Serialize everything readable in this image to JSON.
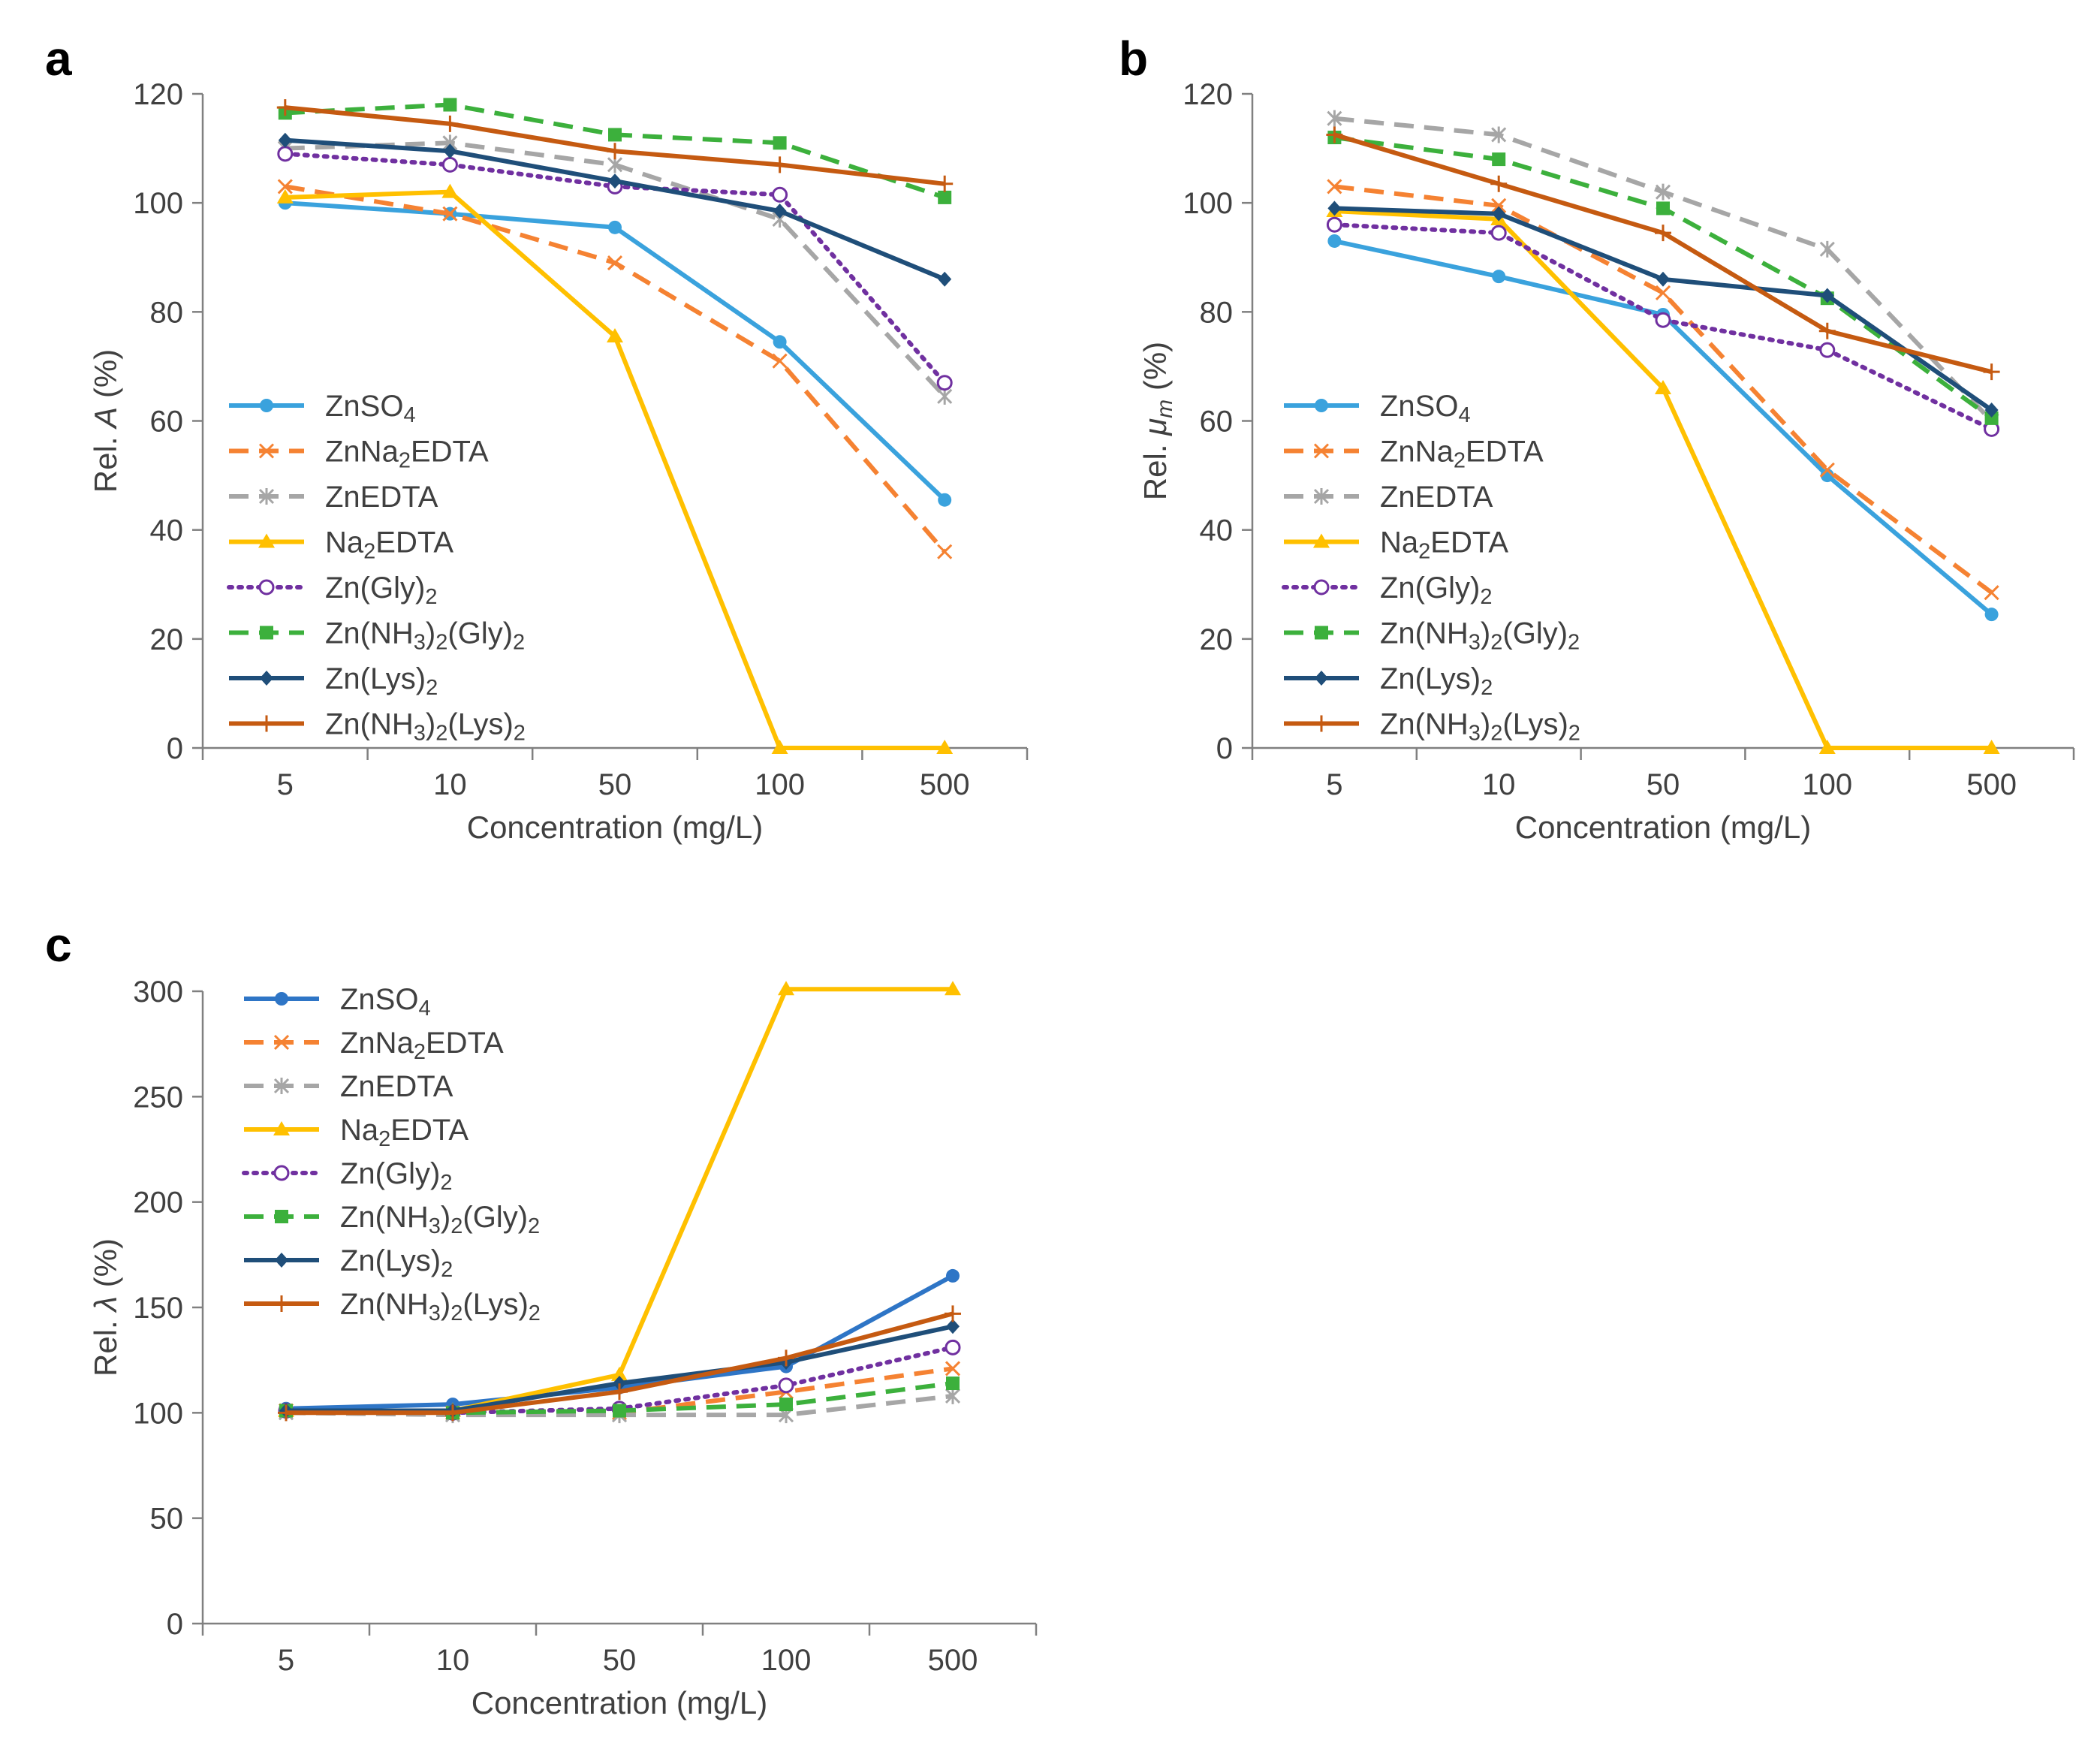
{
  "colors": {
    "ZnSO4_a": "#3AA2DD",
    "ZnSO4_c": "#2E75C6",
    "ZnNa2EDTA": "#F58232",
    "ZnEDTA": "#A6A6A6",
    "Na2EDTA": "#FFC000",
    "ZnGly2": "#7030A0",
    "ZnNH3Gly": "#3CB03C",
    "ZnLys2": "#1F4E79",
    "ZnNH3Lys": "#C55A11"
  },
  "chart_data": [
    {
      "id": "a",
      "panel_label": "a",
      "type": "line",
      "title": "",
      "xlabel": "Concentration (mg/L)",
      "ylabel_prefix": "Rel. ",
      "ylabel_symbol": "A",
      "ylabel_suffix": " (%)",
      "categories": [
        "5",
        "10",
        "50",
        "100",
        "500"
      ],
      "ylim": [
        0,
        120
      ],
      "yticks": [
        0,
        20,
        40,
        60,
        80,
        100,
        120
      ],
      "grid": false,
      "legend_position": "lower-left",
      "series": [
        {
          "key": "ZnSO4",
          "name": "ZnSO4",
          "label": [
            "ZnSO",
            "4",
            ""
          ],
          "color": "ZnSO4_a",
          "dash": "solid",
          "marker": "circle",
          "values": [
            100,
            98,
            95.5,
            74.5,
            45.5
          ]
        },
        {
          "key": "ZnNa2EDTA",
          "name": "ZnNa2EDTA",
          "label": [
            "ZnNa",
            "2",
            "EDTA"
          ],
          "color": "ZnNa2EDTA",
          "dash": "dash",
          "marker": "x",
          "values": [
            103,
            98,
            89,
            71,
            36
          ]
        },
        {
          "key": "ZnEDTA",
          "name": "ZnEDTA",
          "label": [
            "ZnEDTA"
          ],
          "color": "ZnEDTA",
          "dash": "dash",
          "marker": "star",
          "values": [
            110,
            111,
            107,
            97,
            64.5
          ]
        },
        {
          "key": "Na2EDTA",
          "name": "Na2EDTA",
          "label": [
            "Na",
            "2",
            "EDTA"
          ],
          "color": "Na2EDTA",
          "dash": "solid",
          "marker": "triangle",
          "values": [
            101,
            102,
            75.5,
            0,
            0
          ]
        },
        {
          "key": "ZnGly2",
          "name": "Zn(Gly)2",
          "label": [
            "Zn(Gly)",
            "2",
            ""
          ],
          "color": "ZnGly2",
          "dash": "dot",
          "marker": "ocircle",
          "values": [
            109,
            107,
            103,
            101.5,
            67
          ]
        },
        {
          "key": "ZnNH3Gly",
          "name": "Zn(NH3)2(Gly)2",
          "label": [
            "Zn(NH",
            "3",
            ")",
            "2",
            "(Gly)",
            "2",
            ""
          ],
          "color": "ZnNH3Gly",
          "dash": "dash",
          "marker": "square",
          "values": [
            116.5,
            118,
            112.5,
            111,
            101
          ]
        },
        {
          "key": "ZnLys2",
          "name": "Zn(Lys)2",
          "label": [
            "Zn(Lys)",
            "2",
            ""
          ],
          "color": "ZnLys2",
          "dash": "solid",
          "marker": "diamond",
          "values": [
            111.5,
            109.5,
            104,
            98.5,
            86
          ]
        },
        {
          "key": "ZnNH3Lys",
          "name": "Zn(NH3)2(Lys)2",
          "label": [
            "Zn(NH",
            "3",
            ")",
            "2",
            "(Lys)",
            "2",
            ""
          ],
          "color": "ZnNH3Lys",
          "dash": "solid",
          "marker": "plus",
          "values": [
            117.5,
            114.5,
            109.5,
            107,
            103.5
          ]
        }
      ]
    },
    {
      "id": "b",
      "panel_label": "b",
      "type": "line",
      "title": "",
      "xlabel": "Concentration (mg/L)",
      "ylabel_prefix": "Rel. ",
      "ylabel_symbol": "μ",
      "ylabel_sub": "m",
      "ylabel_suffix": " (%)",
      "categories": [
        "5",
        "10",
        "50",
        "100",
        "500"
      ],
      "ylim": [
        0,
        120
      ],
      "yticks": [
        0,
        20,
        40,
        60,
        80,
        100,
        120
      ],
      "grid": false,
      "legend_position": "lower-left",
      "series": [
        {
          "key": "ZnSO4",
          "name": "ZnSO4",
          "label": [
            "ZnSO",
            "4",
            ""
          ],
          "color": "ZnSO4_a",
          "dash": "solid",
          "marker": "circle",
          "values": [
            93,
            86.5,
            79.5,
            50,
            24.5
          ]
        },
        {
          "key": "ZnNa2EDTA",
          "name": "ZnNa2EDTA",
          "label": [
            "ZnNa",
            "2",
            "EDTA"
          ],
          "color": "ZnNa2EDTA",
          "dash": "dash",
          "marker": "x",
          "values": [
            103,
            99.5,
            83.5,
            51,
            28.5
          ]
        },
        {
          "key": "ZnEDTA",
          "name": "ZnEDTA",
          "label": [
            "ZnEDTA"
          ],
          "color": "ZnEDTA",
          "dash": "dash",
          "marker": "star",
          "values": [
            115.5,
            112.5,
            102,
            91.5,
            60
          ]
        },
        {
          "key": "Na2EDTA",
          "name": "Na2EDTA",
          "label": [
            "Na",
            "2",
            "EDTA"
          ],
          "color": "Na2EDTA",
          "dash": "solid",
          "marker": "triangle",
          "values": [
            98.5,
            97,
            66,
            0,
            0
          ]
        },
        {
          "key": "ZnGly2",
          "name": "Zn(Gly)2",
          "label": [
            "Zn(Gly)",
            "2",
            ""
          ],
          "color": "ZnGly2",
          "dash": "dot",
          "marker": "ocircle",
          "values": [
            96,
            94.5,
            78.5,
            73,
            58.5
          ]
        },
        {
          "key": "ZnNH3Gly",
          "name": "Zn(NH3)2(Gly)2",
          "label": [
            "Zn(NH",
            "3",
            ")",
            "2",
            "(Gly)",
            "2",
            ""
          ],
          "color": "ZnNH3Gly",
          "dash": "dash",
          "marker": "square",
          "values": [
            112,
            108,
            99,
            82.5,
            60.5
          ]
        },
        {
          "key": "ZnLys2",
          "name": "Zn(Lys)2",
          "label": [
            "Zn(Lys)",
            "2",
            ""
          ],
          "color": "ZnLys2",
          "dash": "solid",
          "marker": "diamond",
          "values": [
            99,
            98,
            86,
            83,
            62
          ]
        },
        {
          "key": "ZnNH3Lys",
          "name": "Zn(NH3)2(Lys)2",
          "label": [
            "Zn(NH",
            "3",
            ")",
            "2",
            "(Lys)",
            "2",
            ""
          ],
          "color": "ZnNH3Lys",
          "dash": "solid",
          "marker": "plus",
          "values": [
            112.5,
            103.5,
            94.5,
            76.5,
            69
          ]
        }
      ]
    },
    {
      "id": "c",
      "panel_label": "c",
      "type": "line",
      "title": "",
      "xlabel": "Concentration (mg/L)",
      "ylabel_prefix": "Rel. ",
      "ylabel_symbol": "λ",
      "ylabel_suffix": " (%)",
      "categories": [
        "5",
        "10",
        "50",
        "100",
        "500"
      ],
      "ylim": [
        0,
        300
      ],
      "yticks": [
        0,
        50,
        100,
        150,
        200,
        250,
        300
      ],
      "grid": false,
      "legend_position": "upper-left",
      "series": [
        {
          "key": "ZnSO4",
          "name": "ZnSO4",
          "label": [
            "ZnSO",
            "4",
            ""
          ],
          "color": "ZnSO4_c",
          "dash": "solid",
          "marker": "circle",
          "values": [
            102,
            104,
            112,
            122,
            165
          ]
        },
        {
          "key": "ZnNa2EDTA",
          "name": "ZnNa2EDTA",
          "label": [
            "ZnNa",
            "2",
            "EDTA"
          ],
          "color": "ZnNa2EDTA",
          "dash": "dash",
          "marker": "x",
          "values": [
            101,
            100,
            100,
            110,
            121
          ]
        },
        {
          "key": "ZnEDTA",
          "name": "ZnEDTA",
          "label": [
            "ZnEDTA"
          ],
          "color": "ZnEDTA",
          "dash": "dash",
          "marker": "star",
          "values": [
            100,
            99,
            99,
            99,
            108
          ]
        },
        {
          "key": "Na2EDTA",
          "name": "Na2EDTA",
          "label": [
            "Na",
            "2",
            "EDTA"
          ],
          "color": "Na2EDTA",
          "dash": "solid",
          "marker": "triangle",
          "values": [
            101,
            101,
            118,
            301,
            301
          ]
        },
        {
          "key": "ZnGly2",
          "name": "Zn(Gly)2",
          "label": [
            "Zn(Gly)",
            "2",
            ""
          ],
          "color": "ZnGly2",
          "dash": "dot",
          "marker": "ocircle",
          "values": [
            101,
            100,
            102,
            113,
            131
          ]
        },
        {
          "key": "ZnNH3Gly",
          "name": "Zn(NH3)2(Gly)2",
          "label": [
            "Zn(NH",
            "3",
            ")",
            "2",
            "(Gly)",
            "2",
            ""
          ],
          "color": "ZnNH3Gly",
          "dash": "dash",
          "marker": "square",
          "values": [
            101,
            100,
            101,
            104,
            114
          ]
        },
        {
          "key": "ZnLys2",
          "name": "Zn(Lys)2",
          "label": [
            "Zn(Lys)",
            "2",
            ""
          ],
          "color": "ZnLys2",
          "dash": "solid",
          "marker": "diamond",
          "values": [
            101,
            101,
            114,
            124,
            141
          ]
        },
        {
          "key": "ZnNH3Lys",
          "name": "Zn(NH3)2(Lys)2",
          "label": [
            "Zn(NH",
            "3",
            ")",
            "2",
            "(Lys)",
            "2",
            ""
          ],
          "color": "ZnNH3Lys",
          "dash": "solid",
          "marker": "plus",
          "values": [
            100,
            100,
            110,
            126,
            147
          ]
        }
      ]
    }
  ]
}
